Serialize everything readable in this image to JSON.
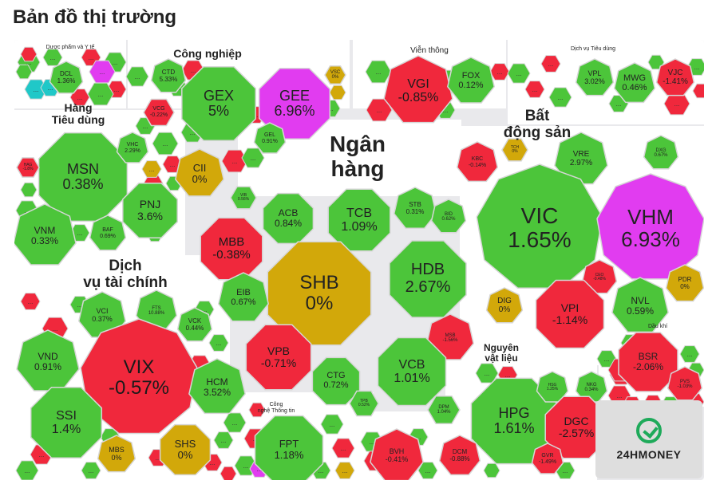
{
  "title": "Bản đồ thị trường",
  "colors": {
    "up": "#4cc53a",
    "down": "#f0283c",
    "ref": "#d2a80a",
    "ceiling": "#e13cf0",
    "floor": "#20c8c8",
    "background": "#e9e9ec",
    "border": "#d6d6d6"
  },
  "logo": {
    "text": "24HMONEY",
    "icon": "24hmoney-logo-icon"
  },
  "sectors": [
    {
      "id": "duoc-pham",
      "label": "Dược phẩm và Y tế"
    },
    {
      "id": "cong-nghiep",
      "label": "Công nghiệp"
    },
    {
      "id": "vien-thong",
      "label": "Viễn thông"
    },
    {
      "id": "dich-vu-tieu-dung",
      "label": "Dịch vụ Tiêu dùng"
    },
    {
      "id": "hang-tieu-dung",
      "label": "Hàng\nTiêu dùng"
    },
    {
      "id": "ngan-hang",
      "label": "Ngân\nhàng"
    },
    {
      "id": "bat-dong-san",
      "label": "Bất\nđộng sản"
    },
    {
      "id": "dich-vu-tai-chinh",
      "label": "Dịch\nvụ tài chính"
    },
    {
      "id": "dau-khi",
      "label": "Dầu khí"
    },
    {
      "id": "nguyen-vat-lieu",
      "label": "Nguyên\nvật liệu"
    },
    {
      "id": "cong-nghe-thong-tin",
      "label": "Công\nnghệ Thông tin"
    }
  ],
  "stocks": [
    {
      "ticker": "DCL",
      "change": "1.36%",
      "status": "up"
    },
    {
      "ticker": "CTD",
      "change": "5.33%",
      "status": "up"
    },
    {
      "ticker": "GEX",
      "change": "5%",
      "status": "up"
    },
    {
      "ticker": "GEE",
      "change": "6.96%",
      "status": "ceiling"
    },
    {
      "ticker": "VSC",
      "change": "0%",
      "status": "ref"
    },
    {
      "ticker": "VGI",
      "change": "-0.85%",
      "status": "down"
    },
    {
      "ticker": "FOX",
      "change": "0.12%",
      "status": "up"
    },
    {
      "ticker": "VPL",
      "change": "3.02%",
      "status": "up"
    },
    {
      "ticker": "MWG",
      "change": "0.46%",
      "status": "up"
    },
    {
      "ticker": "VJC",
      "change": "-1.41%",
      "status": "down"
    },
    {
      "ticker": "VCG",
      "change": "-0.22%",
      "status": "down"
    },
    {
      "ticker": "GEL",
      "change": "0.91%",
      "status": "up"
    },
    {
      "ticker": "CII",
      "change": "0%",
      "status": "ref"
    },
    {
      "ticker": "MSN",
      "change": "0.38%",
      "status": "up"
    },
    {
      "ticker": "VHC",
      "change": "2.29%",
      "status": "up"
    },
    {
      "ticker": "HAG",
      "change": "-1.8%",
      "status": "down"
    },
    {
      "ticker": "PNJ",
      "change": "3.6%",
      "status": "up"
    },
    {
      "ticker": "VNM",
      "change": "0.33%",
      "status": "up"
    },
    {
      "ticker": "BAF",
      "change": "0.69%",
      "status": "up"
    },
    {
      "ticker": "VIB",
      "change": "0.56%",
      "status": "up"
    },
    {
      "ticker": "ACB",
      "change": "0.84%",
      "status": "up"
    },
    {
      "ticker": "TCB",
      "change": "1.09%",
      "status": "up"
    },
    {
      "ticker": "STB",
      "change": "0.31%",
      "status": "up"
    },
    {
      "ticker": "BID",
      "change": "0.62%",
      "status": "up"
    },
    {
      "ticker": "MBB",
      "change": "-0.38%",
      "status": "down"
    },
    {
      "ticker": "SHB",
      "change": "0%",
      "status": "ref"
    },
    {
      "ticker": "HDB",
      "change": "2.67%",
      "status": "up"
    },
    {
      "ticker": "EIB",
      "change": "0.67%",
      "status": "up"
    },
    {
      "ticker": "VPB",
      "change": "-0.71%",
      "status": "down"
    },
    {
      "ticker": "MSB",
      "change": "-1.56%",
      "status": "down"
    },
    {
      "ticker": "VCB",
      "change": "1.01%",
      "status": "up"
    },
    {
      "ticker": "CTG",
      "change": "0.72%",
      "status": "up"
    },
    {
      "ticker": "TPB",
      "change": "0.52%",
      "status": "up"
    },
    {
      "ticker": "KBC",
      "change": "-0.14%",
      "status": "down"
    },
    {
      "ticker": "TCH",
      "change": "0%",
      "status": "ref"
    },
    {
      "ticker": "VRE",
      "change": "2.97%",
      "status": "up"
    },
    {
      "ticker": "DXG",
      "change": "0.67%",
      "status": "up"
    },
    {
      "ticker": "VIC",
      "change": "1.65%",
      "status": "up"
    },
    {
      "ticker": "VHM",
      "change": "6.93%",
      "status": "ceiling"
    },
    {
      "ticker": "CEO",
      "change": "-0.48%",
      "status": "down"
    },
    {
      "ticker": "PDR",
      "change": "0%",
      "status": "ref"
    },
    {
      "ticker": "DIG",
      "change": "0%",
      "status": "ref"
    },
    {
      "ticker": "VPI",
      "change": "-1.14%",
      "status": "down"
    },
    {
      "ticker": "NVL",
      "change": "0.59%",
      "status": "up"
    },
    {
      "ticker": "VCI",
      "change": "0.37%",
      "status": "up"
    },
    {
      "ticker": "FTS",
      "change": "10.88%",
      "status": "up"
    },
    {
      "ticker": "VCK",
      "change": "0.44%",
      "status": "up"
    },
    {
      "ticker": "VND",
      "change": "0.91%",
      "status": "up"
    },
    {
      "ticker": "VIX",
      "change": "-0.57%",
      "status": "down"
    },
    {
      "ticker": "HCM",
      "change": "3.52%",
      "status": "up"
    },
    {
      "ticker": "SSI",
      "change": "1.4%",
      "status": "up"
    },
    {
      "ticker": "MBS",
      "change": "0%",
      "status": "ref"
    },
    {
      "ticker": "SHS",
      "change": "0%",
      "status": "ref"
    },
    {
      "ticker": "FPT",
      "change": "1.18%",
      "status": "up"
    },
    {
      "ticker": "BVH",
      "change": "-0.41%",
      "status": "down"
    },
    {
      "ticker": "HPG",
      "change": "1.61%",
      "status": "up"
    },
    {
      "ticker": "HSG",
      "change": "1.25%",
      "status": "up"
    },
    {
      "ticker": "NKG",
      "change": "0.34%",
      "status": "up"
    },
    {
      "ticker": "DPM",
      "change": "1.04%",
      "status": "up"
    },
    {
      "ticker": "DGC",
      "change": "-2.57%",
      "status": "down"
    },
    {
      "ticker": "DCM",
      "change": "-0.88%",
      "status": "down"
    },
    {
      "ticker": "GVR",
      "change": "-1.49%",
      "status": "down"
    },
    {
      "ticker": "BSR",
      "change": "-2.06%",
      "status": "down"
    },
    {
      "ticker": "PVS",
      "change": "-1.03%",
      "status": "down"
    }
  ],
  "small_cells": [
    {
      "status": "up"
    },
    {
      "status": "up"
    },
    {
      "status": "down"
    },
    {
      "status": "up"
    },
    {
      "status": "ceiling"
    },
    {
      "status": "down"
    },
    {
      "status": "floor"
    },
    {
      "status": "up"
    },
    {
      "status": "down"
    },
    {
      "status": "floor"
    },
    {
      "status": "down"
    },
    {
      "status": "up"
    },
    {
      "status": "up"
    },
    {
      "status": "down"
    },
    {
      "status": "up"
    },
    {
      "status": "up"
    },
    {
      "status": "down"
    },
    {
      "status": "up"
    },
    {
      "status": "ref"
    },
    {
      "status": "up"
    },
    {
      "status": "down"
    },
    {
      "status": "up"
    },
    {
      "status": "up"
    },
    {
      "status": "up"
    },
    {
      "status": "up"
    },
    {
      "status": "down"
    },
    {
      "status": "up"
    },
    {
      "status": "up"
    },
    {
      "status": "down"
    },
    {
      "status": "up"
    },
    {
      "status": "down"
    },
    {
      "status": "up"
    },
    {
      "status": "down"
    },
    {
      "status": "up"
    },
    {
      "status": "down"
    },
    {
      "status": "up"
    },
    {
      "status": "up"
    },
    {
      "status": "down"
    },
    {
      "status": "up"
    },
    {
      "status": "up"
    },
    {
      "status": "down"
    },
    {
      "status": "down"
    },
    {
      "status": "up"
    },
    {
      "status": "ref"
    },
    {
      "status": "up"
    },
    {
      "status": "up"
    },
    {
      "status": "down"
    },
    {
      "status": "up"
    },
    {
      "status": "down"
    },
    {
      "status": "up"
    },
    {
      "status": "up"
    },
    {
      "status": "down"
    },
    {
      "status": "up"
    },
    {
      "status": "down"
    },
    {
      "status": "up"
    },
    {
      "status": "down"
    },
    {
      "status": "down"
    },
    {
      "status": "up"
    },
    {
      "status": "up"
    },
    {
      "status": "down"
    },
    {
      "status": "up"
    },
    {
      "status": "down"
    },
    {
      "status": "up"
    },
    {
      "status": "down"
    },
    {
      "status": "up"
    },
    {
      "status": "down"
    },
    {
      "status": "ceiling"
    },
    {
      "status": "up"
    },
    {
      "status": "ref"
    },
    {
      "status": "down"
    },
    {
      "status": "up"
    },
    {
      "status": "down"
    },
    {
      "status": "up"
    },
    {
      "status": "up"
    },
    {
      "status": "up"
    },
    {
      "status": "down"
    },
    {
      "status": "up"
    },
    {
      "status": "down"
    },
    {
      "status": "up"
    },
    {
      "status": "up"
    },
    {
      "status": "down"
    },
    {
      "status": "up"
    },
    {
      "status": "down"
    },
    {
      "status": "down"
    },
    {
      "status": "up"
    },
    {
      "status": "down"
    },
    {
      "status": "up"
    },
    {
      "status": "down"
    },
    {
      "status": "up"
    },
    {
      "status": "down"
    }
  ]
}
